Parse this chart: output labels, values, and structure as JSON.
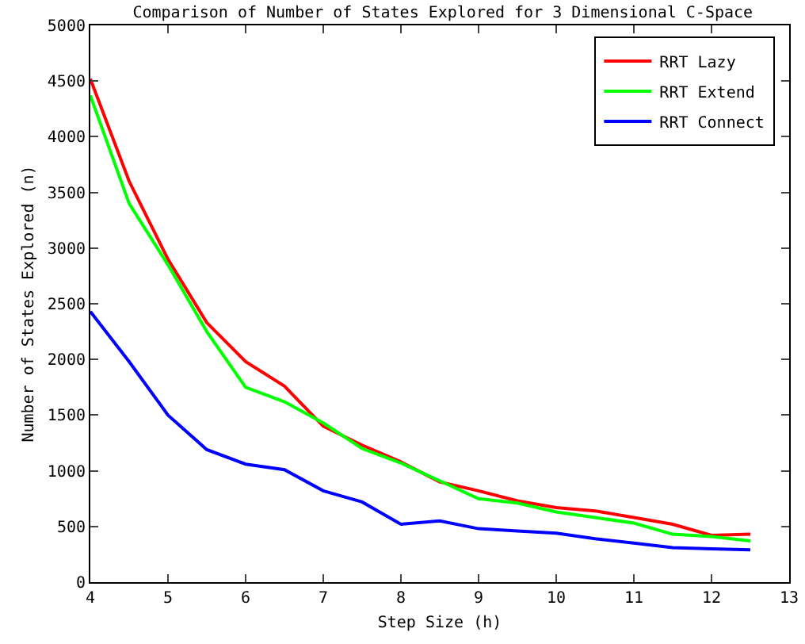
{
  "chart_data": {
    "type": "line",
    "title": "Comparison of Number of States Explored for 3 Dimensional C-Space",
    "xlabel": "Step Size (h)",
    "ylabel": "Number of States Explored (n)",
    "x": [
      4,
      4.5,
      5,
      5.5,
      6,
      6.5,
      7,
      7.5,
      8,
      8.5,
      9,
      9.5,
      10,
      10.5,
      11,
      11.5,
      12,
      12.5
    ],
    "series": [
      {
        "name": "RRT Lazy",
        "color": "#ff0000",
        "values": [
          4520,
          3600,
          2900,
          2330,
          1980,
          1760,
          1400,
          1230,
          1080,
          900,
          820,
          730,
          670,
          640,
          580,
          520,
          420,
          430
        ]
      },
      {
        "name": "RRT Extend",
        "color": "#00ff00",
        "values": [
          4370,
          3400,
          2850,
          2250,
          1750,
          1620,
          1430,
          1200,
          1070,
          910,
          750,
          710,
          630,
          580,
          530,
          430,
          410,
          370
        ]
      },
      {
        "name": "RRT Connect",
        "color": "#0000ff",
        "values": [
          2430,
          1980,
          1500,
          1190,
          1060,
          1010,
          820,
          720,
          520,
          550,
          480,
          460,
          440,
          390,
          350,
          310,
          300,
          290
        ]
      }
    ],
    "xlim": [
      4,
      13
    ],
    "xticks": [
      4,
      5,
      6,
      7,
      8,
      9,
      10,
      11,
      12,
      13
    ],
    "ylim": [
      0,
      5000
    ],
    "yticks": [
      0,
      500,
      1000,
      1500,
      2000,
      2500,
      3000,
      3500,
      4000,
      4500,
      5000
    ],
    "grid": false,
    "legend": "top right",
    "marker": "none",
    "line_style": "solid"
  }
}
